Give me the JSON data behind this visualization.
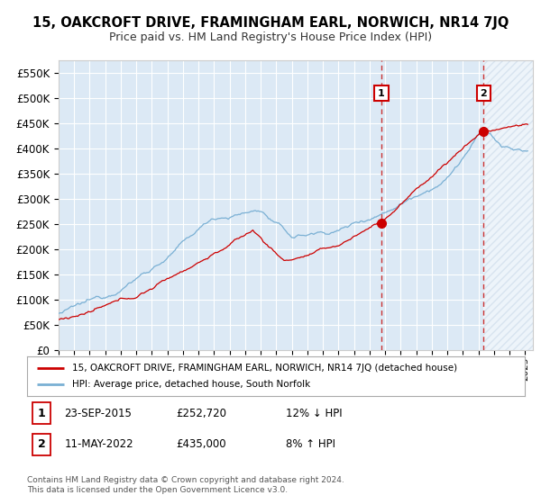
{
  "title": "15, OAKCROFT DRIVE, FRAMINGHAM EARL, NORWICH, NR14 7JQ",
  "subtitle": "Price paid vs. HM Land Registry's House Price Index (HPI)",
  "legend_line1": "15, OAKCROFT DRIVE, FRAMINGHAM EARL, NORWICH, NR14 7JQ (detached house)",
  "legend_line2": "HPI: Average price, detached house, South Norfolk",
  "annotation1": {
    "label": "1",
    "date": "23-SEP-2015",
    "price": 252720,
    "note": "12% ↓ HPI",
    "year": 2015.73
  },
  "annotation2": {
    "label": "2",
    "date": "11-MAY-2022",
    "price": 435000,
    "note": "8% ↑ HPI",
    "year": 2022.37
  },
  "footer1": "Contains HM Land Registry data © Crown copyright and database right 2024.",
  "footer2": "This data is licensed under the Open Government Licence v3.0.",
  "ylim": [
    0,
    575000
  ],
  "yticks": [
    0,
    50000,
    100000,
    150000,
    200000,
    250000,
    300000,
    350000,
    400000,
    450000,
    500000,
    550000
  ],
  "xlim_start": 1995,
  "xlim_end": 2025.5,
  "background_color": "#dce9f5",
  "fig_bg": "#ffffff",
  "grid_color": "#ffffff",
  "red_line_color": "#cc0000",
  "blue_line_color": "#7ab0d4",
  "vline_color": "#cc3333",
  "box_color": "#cc0000",
  "hatch_color": "#c8d8e8",
  "sale1_price": 252720,
  "sale2_price": 435000
}
